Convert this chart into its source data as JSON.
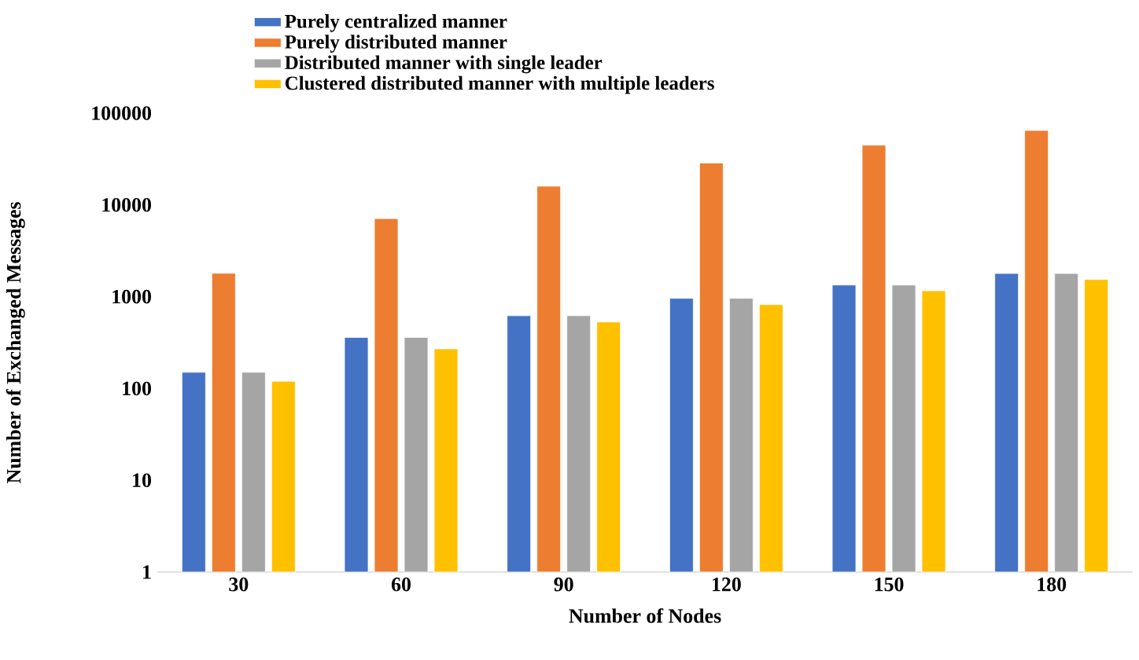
{
  "chart_data": {
    "type": "bar",
    "xlabel": "Number of Nodes",
    "ylabel": "Number of Exchanged Messages",
    "categories": [
      "30",
      "60",
      "90",
      "120",
      "150",
      "180"
    ],
    "log": "y",
    "ylim": [
      1,
      100000
    ],
    "yticks": [
      1,
      10,
      100,
      1000,
      10000,
      100000
    ],
    "legend": "top",
    "series": [
      {
        "name": "Purely centralized manner",
        "color": "#4472c4",
        "values": [
          150,
          360,
          620,
          960,
          1340,
          1790
        ]
      },
      {
        "name": "Purely distributed manner",
        "color": "#ed7d31",
        "values": [
          1800,
          7100,
          16000,
          28600,
          44800,
          64800
        ]
      },
      {
        "name": "Distributed manner with single leader",
        "color": "#a5a5a5",
        "values": [
          150,
          360,
          620,
          960,
          1340,
          1790
        ]
      },
      {
        "name": "Clustered distributed manner with multiple leaders",
        "color": "#ffc000",
        "values": [
          120,
          270,
          530,
          820,
          1160,
          1540
        ]
      }
    ]
  }
}
